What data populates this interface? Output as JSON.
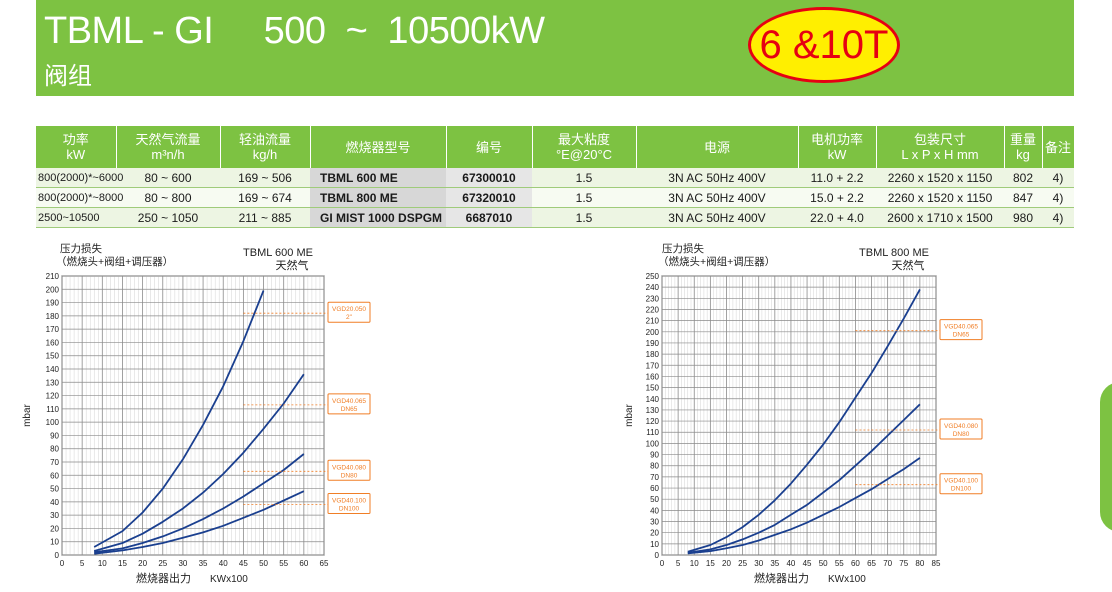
{
  "banner": {
    "title": "TBML - GI     500  ~  10500kW",
    "subtitle": "阀组",
    "badge": "6 &10T"
  },
  "table": {
    "headers": [
      {
        "l1": "功率",
        "l2": "kW"
      },
      {
        "l1": "天然气流量",
        "l2": "m³n/h"
      },
      {
        "l1": "轻油流量",
        "l2": "kg/h"
      },
      {
        "l1": "燃烧器型号",
        "l2": ""
      },
      {
        "l1": "编号",
        "l2": ""
      },
      {
        "l1": "最大粘度",
        "l2": "°E@20°C"
      },
      {
        "l1": "电源",
        "l2": ""
      },
      {
        "l1": "电机功率",
        "l2": "kW"
      },
      {
        "l1": "包装尺寸",
        "l2": "L x P x H  mm"
      },
      {
        "l1": "重量",
        "l2": "kg"
      },
      {
        "l1": "备注",
        "l2": ""
      }
    ],
    "rows": [
      [
        "800(2000)*~6000",
        "80 ~ 600",
        "169 ~ 506",
        "TBML  600 ME",
        "67300010",
        "1.5",
        "3N AC 50Hz 400V",
        "11.0 + 2.2",
        "2260 x 1520 x 1150",
        "802",
        "4)"
      ],
      [
        "800(2000)*~8000",
        "80 ~ 800",
        "169 ~ 674",
        "TBML  800 ME",
        "67320010",
        "1.5",
        "3N AC 50Hz 400V",
        "15.0 + 2.2",
        "2260 x 1520 x 1150",
        "847",
        "4)"
      ],
      [
        "2500~10500",
        "250 ~ 1050",
        "211 ~ 885",
        "GI MIST 1000 DSPGM",
        "6687010",
        "1.5",
        "3N AC 50Hz 400V",
        "22.0 + 4.0",
        "2600 x 1710 x 1500",
        "980",
        "4)"
      ]
    ]
  },
  "colors": {
    "green": "#7dc242",
    "curve": "#1a3f8f",
    "orange": "#f07e26",
    "badge_fill": "#ffef00",
    "badge_ring": "#e60012"
  },
  "chart_data": [
    {
      "type": "line",
      "title": "TBML 600 ME",
      "subtitle": "天然气",
      "ylabel_cn": "压力损失",
      "ylabel_cn2": "（燃烧头+阀组+调压器）",
      "ylabel": "mbar",
      "xlabel_cn": "燃烧器出力",
      "xlabel": "KWx100",
      "xlim": [
        0,
        65
      ],
      "ylim": [
        0,
        210
      ],
      "xticks": [
        0,
        5,
        10,
        15,
        20,
        25,
        30,
        35,
        40,
        45,
        50,
        55,
        60,
        65
      ],
      "yticks": [
        0,
        10,
        20,
        30,
        40,
        50,
        60,
        70,
        80,
        90,
        100,
        110,
        120,
        130,
        140,
        150,
        160,
        170,
        180,
        190,
        200,
        210
      ],
      "grid": true,
      "series": [
        {
          "name": "VGD20.050",
          "x": [
            8,
            15,
            20,
            25,
            30,
            35,
            40,
            45,
            50
          ],
          "y": [
            6,
            18,
            32,
            50,
            72,
            98,
            127,
            161,
            199
          ]
        },
        {
          "name": "VGD40.065",
          "x": [
            8,
            15,
            20,
            25,
            30,
            35,
            40,
            45,
            50,
            55,
            60
          ],
          "y": [
            3,
            9,
            16,
            25,
            35,
            47,
            61,
            77,
            95,
            114,
            136
          ]
        },
        {
          "name": "VGD40.080",
          "x": [
            8,
            15,
            20,
            25,
            30,
            35,
            40,
            45,
            50,
            55,
            60
          ],
          "y": [
            2,
            5,
            9,
            14,
            20,
            27,
            35,
            44,
            54,
            64,
            76
          ]
        },
        {
          "name": "VGD40.100",
          "x": [
            8,
            15,
            20,
            25,
            30,
            35,
            40,
            45,
            50,
            55,
            60
          ],
          "y": [
            1,
            3.5,
            6,
            9,
            13,
            17,
            22,
            28,
            34,
            41,
            48
          ]
        }
      ],
      "annotations": [
        {
          "l1": "VGD20.050",
          "l2": "2\"",
          "y": 182
        },
        {
          "l1": "VGD40.065",
          "l2": "DN65",
          "y": 113
        },
        {
          "l1": "VGD40.080",
          "l2": "DN80",
          "y": 63
        },
        {
          "l1": "VGD40.100",
          "l2": "DN100",
          "y": 38
        }
      ]
    },
    {
      "type": "line",
      "title": "TBML 800 ME",
      "subtitle": "天然气",
      "ylabel_cn": "压力损失",
      "ylabel_cn2": "（燃烧头+阀组+调压器）",
      "ylabel": "mbar",
      "xlabel_cn": "燃烧器出力",
      "xlabel": "KWx100",
      "xlim": [
        0,
        85
      ],
      "ylim": [
        0,
        250
      ],
      "xticks": [
        0,
        5,
        10,
        15,
        20,
        25,
        30,
        35,
        40,
        45,
        50,
        55,
        60,
        65,
        70,
        75,
        80,
        85
      ],
      "yticks": [
        0,
        10,
        20,
        30,
        40,
        50,
        60,
        70,
        80,
        90,
        100,
        110,
        120,
        130,
        140,
        150,
        160,
        170,
        180,
        190,
        200,
        210,
        220,
        230,
        240,
        250
      ],
      "grid": true,
      "series": [
        {
          "name": "VGD40.065",
          "x": [
            8,
            15,
            20,
            25,
            30,
            35,
            40,
            45,
            50,
            55,
            60,
            65,
            70,
            75,
            80
          ],
          "y": [
            3,
            9,
            16,
            25,
            36,
            49,
            64,
            81,
            99,
            119,
            141,
            163,
            187,
            212,
            238
          ]
        },
        {
          "name": "VGD40.080",
          "x": [
            8,
            15,
            20,
            25,
            30,
            35,
            40,
            45,
            50,
            55,
            60,
            65,
            70,
            75,
            80
          ],
          "y": [
            2,
            5,
            9,
            14,
            20,
            27,
            36,
            45,
            56,
            67,
            80,
            93,
            107,
            121,
            135
          ]
        },
        {
          "name": "VGD40.100",
          "x": [
            8,
            15,
            20,
            25,
            30,
            35,
            40,
            45,
            50,
            55,
            60,
            65,
            70,
            75,
            80
          ],
          "y": [
            1.5,
            3.5,
            6,
            9,
            13,
            18,
            23,
            29,
            36,
            43,
            51,
            59,
            68,
            77,
            87
          ]
        }
      ],
      "annotations": [
        {
          "l1": "VGD40.065",
          "l2": "DN65",
          "y": 201
        },
        {
          "l1": "VGD40.080",
          "l2": "DN80",
          "y": 112
        },
        {
          "l1": "VGD40.100",
          "l2": "DN100",
          "y": 63
        }
      ]
    }
  ]
}
